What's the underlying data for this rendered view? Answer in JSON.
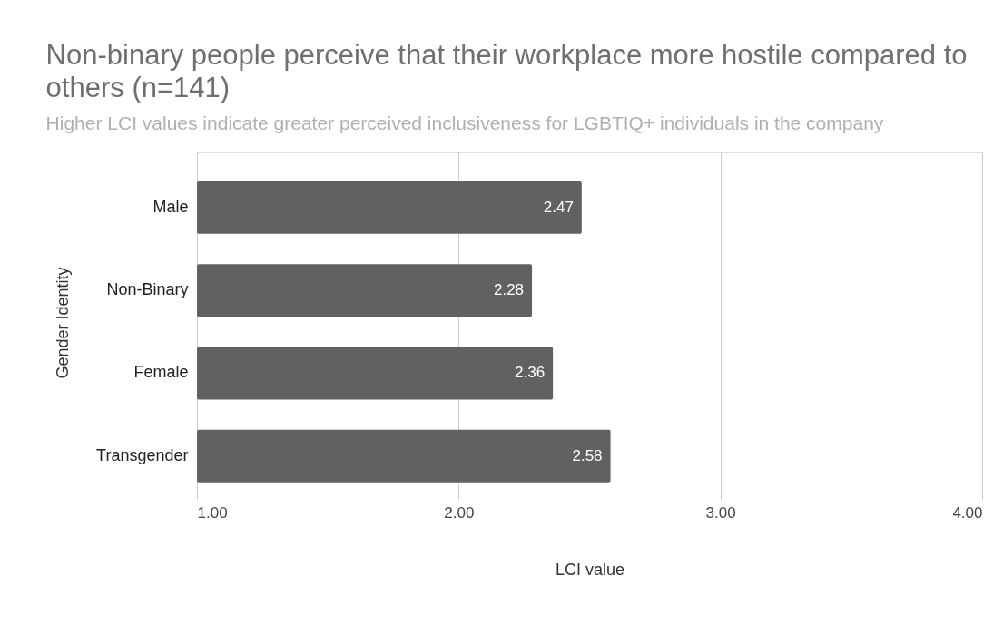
{
  "chart_data": {
    "type": "bar",
    "orientation": "horizontal",
    "title": "Non-binary people perceive that their workplace more hostile compared to others (n=141)",
    "subtitle": "Higher LCI values indicate greater perceived inclusiveness for LGBTIQ+ individuals in the company",
    "xlabel": "LCI value",
    "ylabel": "Gender Identity",
    "categories": [
      "Male",
      "Non-Binary",
      "Female",
      "Transgender"
    ],
    "values": [
      2.47,
      2.28,
      2.36,
      2.58
    ],
    "color": "#616161",
    "xlim": [
      1,
      4
    ],
    "xticks": [
      {
        "value": 1,
        "label": "1.00"
      },
      {
        "value": 2,
        "label": "2.00"
      },
      {
        "value": 3,
        "label": "3.00"
      },
      {
        "value": 4,
        "label": "4.00"
      }
    ],
    "grid": "x",
    "data_labels": true
  }
}
